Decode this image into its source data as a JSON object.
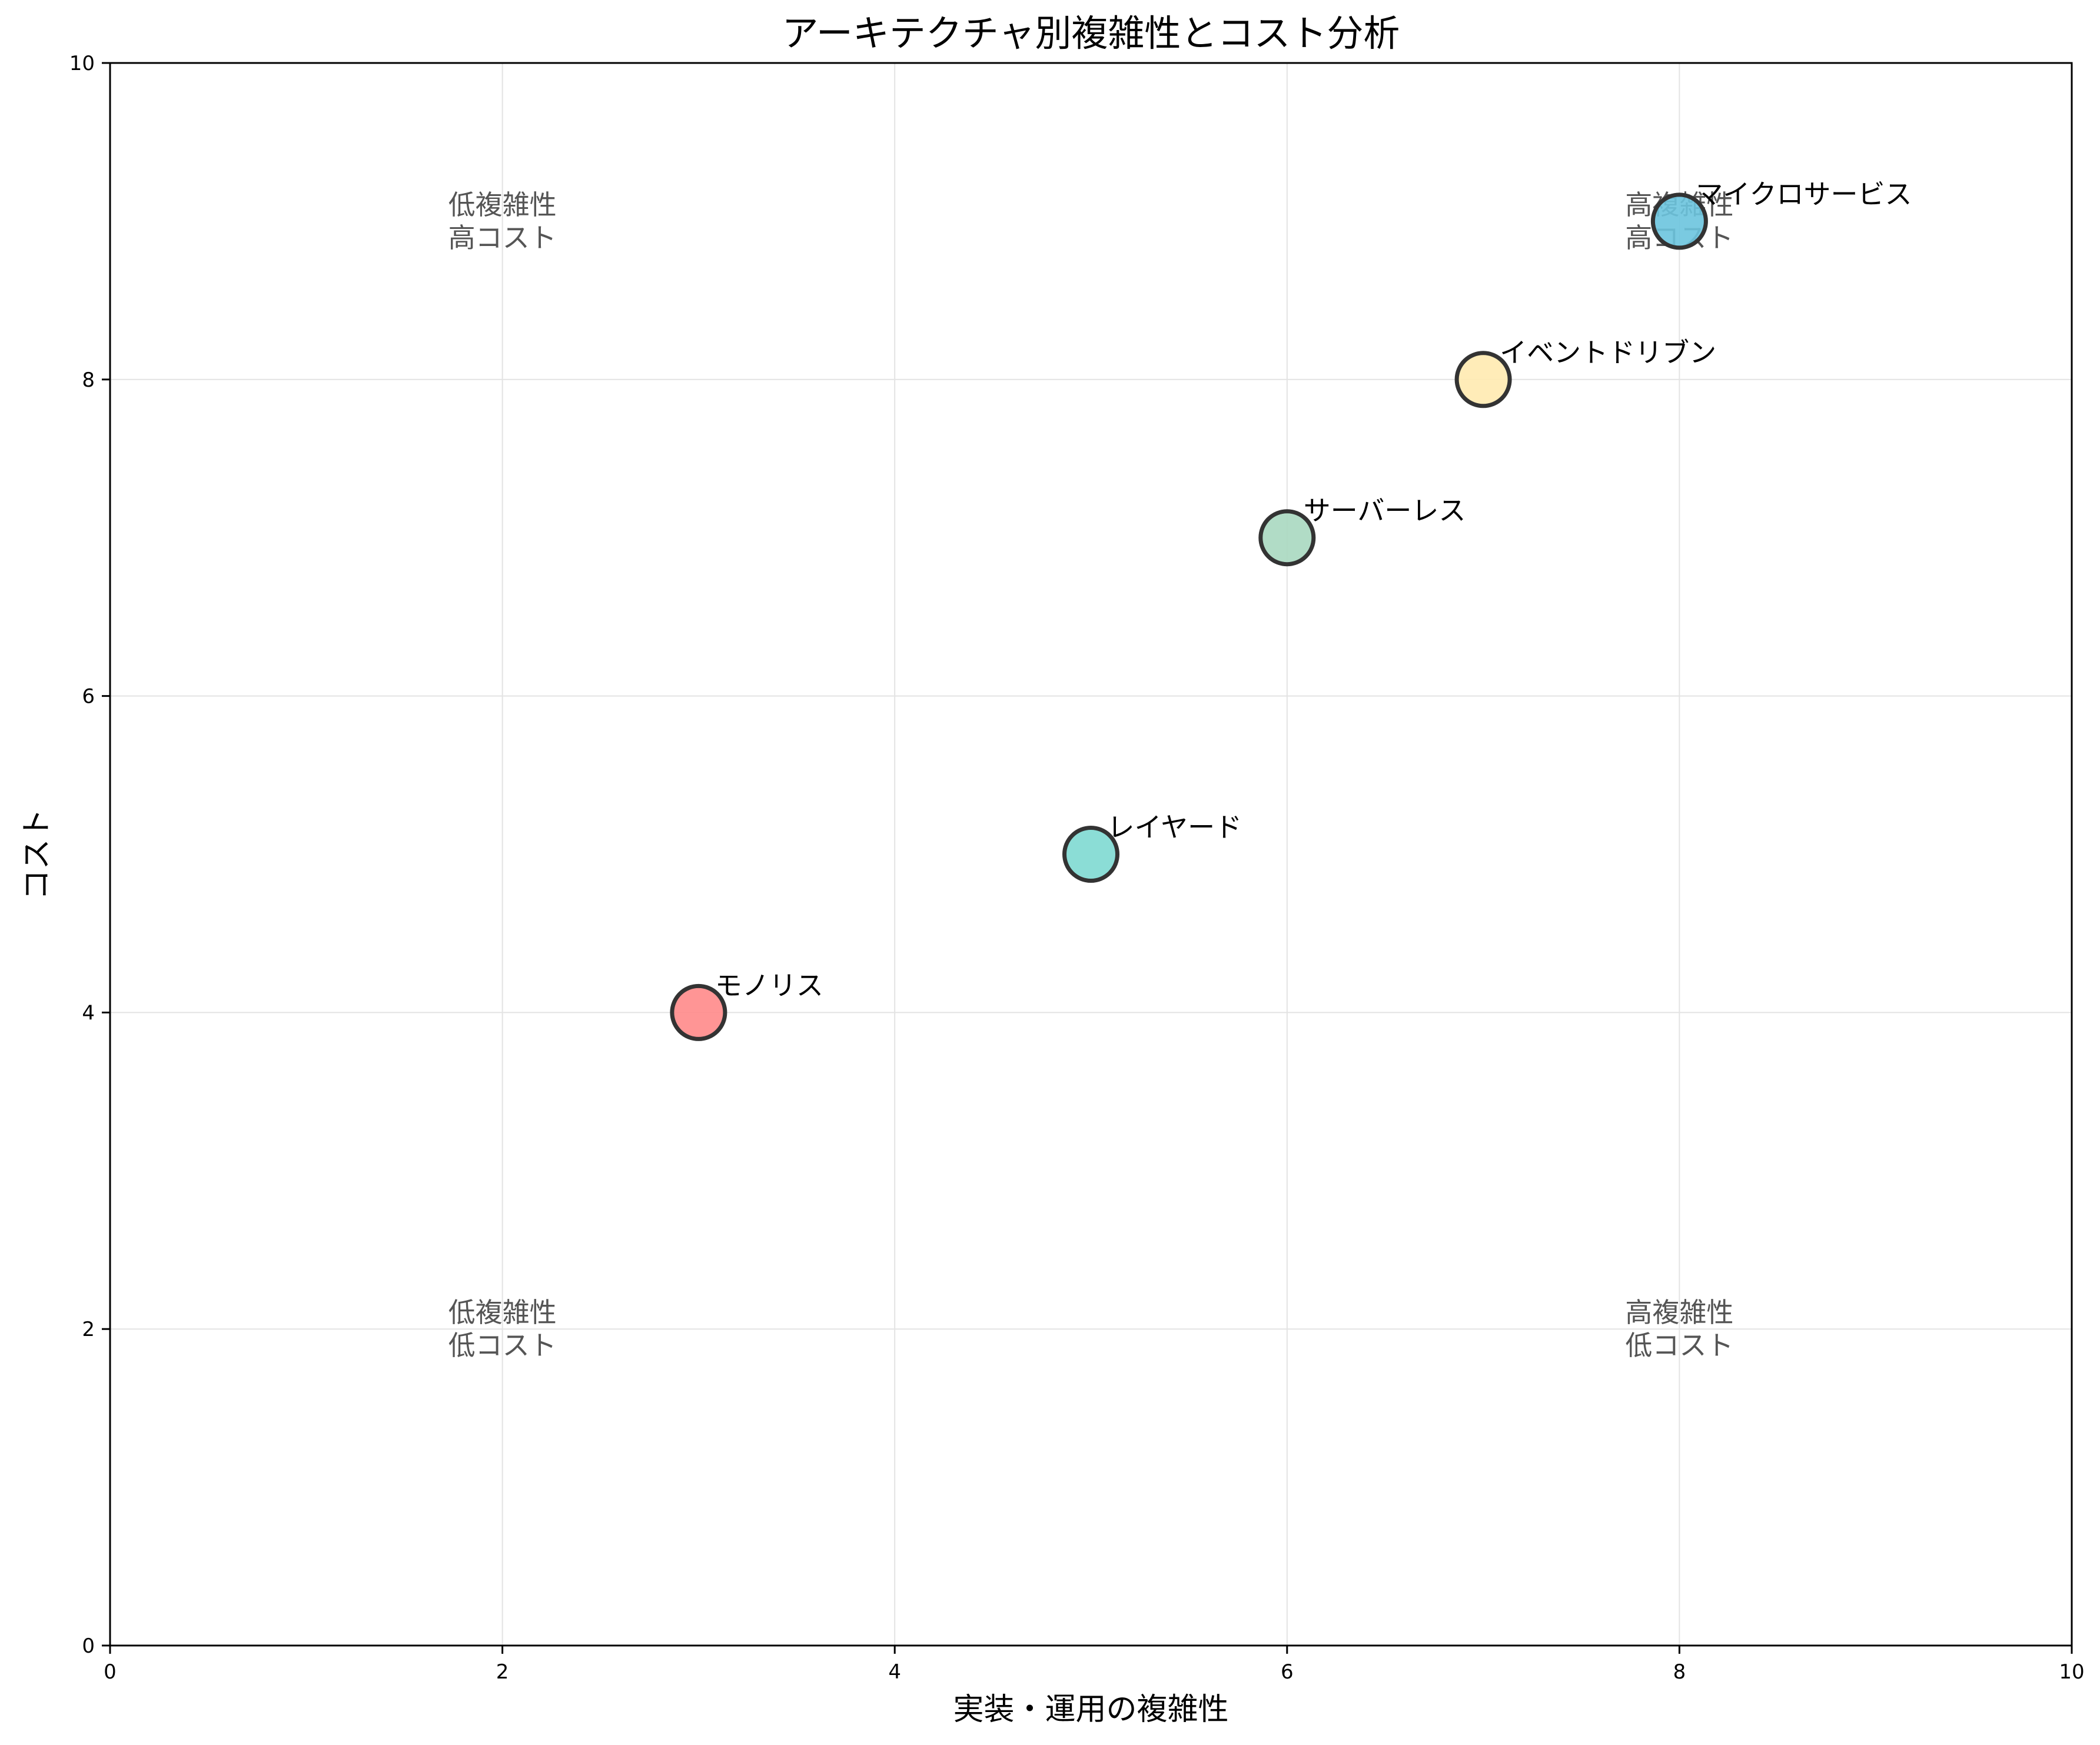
{
  "chart_data": {
    "type": "scatter",
    "title": "アーキテクチャ別複雑性とコスト分析",
    "xlabel": "実装・運用の複雑性",
    "ylabel": "コスト",
    "xlim": [
      0,
      10
    ],
    "ylim": [
      0,
      10
    ],
    "xticks": [
      "0",
      "2",
      "4",
      "6",
      "8",
      "10"
    ],
    "yticks": [
      "0",
      "2",
      "4",
      "6",
      "8",
      "10"
    ],
    "grid": true,
    "points": [
      {
        "label": "モノリス",
        "x": 3,
        "y": 4,
        "color": "#FF8A8A"
      },
      {
        "label": "レイヤード",
        "x": 5,
        "y": 5,
        "color": "#7ED9D2"
      },
      {
        "label": "サーバーレス",
        "x": 6,
        "y": 7,
        "color": "#A8D8C0"
      },
      {
        "label": "イベントドリブン",
        "x": 7,
        "y": 8,
        "color": "#FFEAB0"
      },
      {
        "label": "マイクロサービス",
        "x": 8,
        "y": 9,
        "color": "#6CC4DE"
      }
    ],
    "annotations": [
      {
        "x": 2,
        "y": 9,
        "lines": [
          "低複雑性",
          "高コスト"
        ]
      },
      {
        "x": 8,
        "y": 9,
        "lines": [
          "高複雑性",
          "高コスト"
        ]
      },
      {
        "x": 2,
        "y": 2,
        "lines": [
          "低複雑性",
          "低コスト"
        ]
      },
      {
        "x": 8,
        "y": 2,
        "lines": [
          "高複雑性",
          "低コスト"
        ]
      }
    ]
  }
}
